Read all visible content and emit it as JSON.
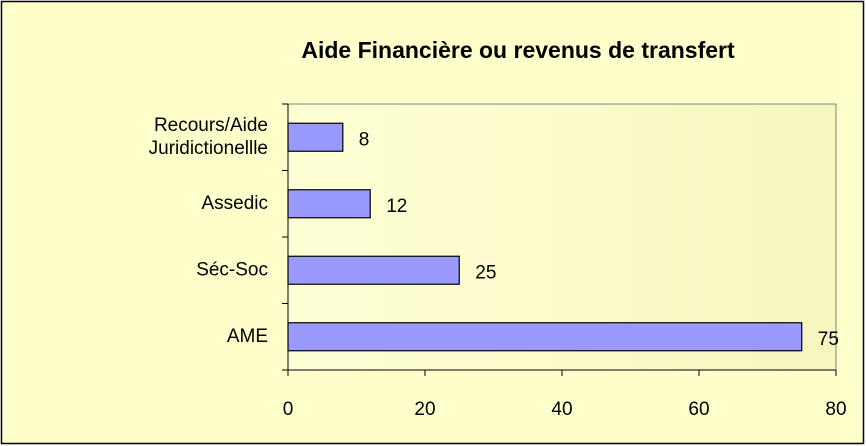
{
  "chart_data": {
    "type": "bar",
    "orientation": "horizontal",
    "title": "Aide Financière ou revenus de transfert",
    "categories": [
      "Recours/Aide Juridictionellle",
      "Assedic",
      "Séc-Soc",
      "AME"
    ],
    "values": [
      8,
      12,
      25,
      75
    ],
    "color": "#9999ff",
    "xlim": [
      0,
      80
    ],
    "xticks": [
      0,
      20,
      40,
      60,
      80
    ]
  }
}
